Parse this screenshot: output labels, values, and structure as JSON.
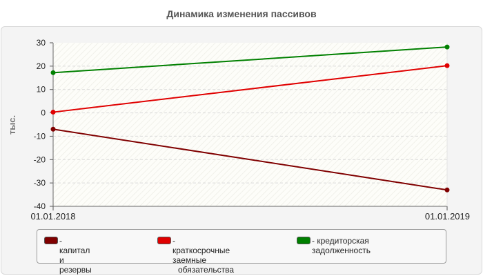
{
  "title": "Динамика изменения пассивов",
  "chart_data": {
    "type": "line",
    "title": "Динамика изменения пассивов",
    "ylabel": "тыс.",
    "xlabel": "",
    "ylim": [
      -40,
      30
    ],
    "yticks": [
      30,
      20,
      10,
      0,
      -10,
      -20,
      -30,
      -40
    ],
    "x": [
      "01.01.2018",
      "01.01.2019"
    ],
    "grid": true,
    "legend_position": "bottom",
    "series": [
      {
        "name": "- капитал и резервы",
        "color": "#800000",
        "values": [
          -7,
          -33
        ]
      },
      {
        "name": "- краткосрочные заемные обязательства",
        "color": "#e00000",
        "values": [
          0.3,
          20.2
        ]
      },
      {
        "name": "- кредиторская задолженность",
        "color": "#008000",
        "values": [
          17.2,
          28.2
        ]
      }
    ]
  },
  "legend": {
    "items": [
      {
        "label": "- капитал и резервы",
        "label_line2": "",
        "color": "#800000"
      },
      {
        "label": "- краткосрочные заемные",
        "label_line2": "обязательства",
        "color": "#e00000"
      },
      {
        "label": "- кредиторская задолженность",
        "label_line2": "",
        "color": "#008000"
      }
    ]
  }
}
